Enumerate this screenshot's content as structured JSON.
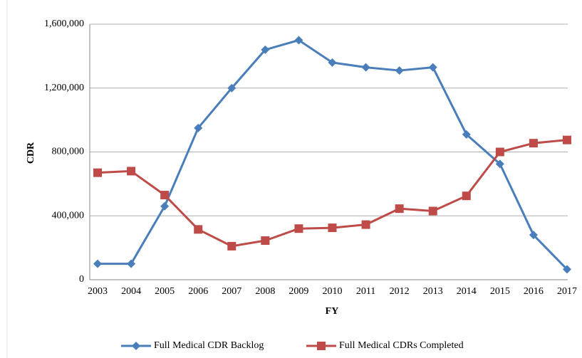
{
  "chart_data": {
    "type": "line",
    "x_label": "FY",
    "y_label": "CDR",
    "categories": [
      "2003",
      "2004",
      "2005",
      "2006",
      "2007",
      "2008",
      "2009",
      "2010",
      "2011",
      "2012",
      "2013",
      "2014",
      "2015",
      "2016",
      "2017"
    ],
    "series": [
      {
        "name": "Full Medical CDR Backlog",
        "color": "#4a7ebb",
        "marker": "diamond",
        "values": [
          100000,
          100000,
          460000,
          950000,
          1200000,
          1440000,
          1500000,
          1360000,
          1330000,
          1310000,
          1330000,
          910000,
          725000,
          280000,
          65000
        ]
      },
      {
        "name": "Full Medical CDRs Completed",
        "color": "#be4b48",
        "marker": "square",
        "values": [
          670000,
          680000,
          530000,
          315000,
          210000,
          245000,
          320000,
          325000,
          345000,
          445000,
          430000,
          525000,
          800000,
          855000,
          875000
        ]
      }
    ],
    "ylim": [
      0,
      1600000
    ],
    "yticks": [
      0,
      {
        "value": 400000,
        "label": "400,000"
      },
      {
        "value": 800000,
        "label": "800,000"
      },
      {
        "value": 1200000,
        "label": "1,200,000"
      },
      {
        "value": 1600000,
        "label": "1,600,000"
      }
    ],
    "grid": true,
    "legend": "bottom"
  }
}
